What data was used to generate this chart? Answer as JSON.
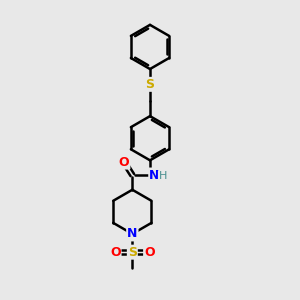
{
  "background_color": "#e8e8e8",
  "line_color": "#000000",
  "bond_width": 1.8,
  "atom_colors": {
    "O": "#ff0000",
    "N": "#0000ff",
    "S_sulfonyl": "#ccaa00",
    "S_sulfanyl": "#ccaa00",
    "H": "#4a9090",
    "C": "#000000"
  },
  "figsize": [
    3.0,
    3.0
  ],
  "dpi": 100
}
